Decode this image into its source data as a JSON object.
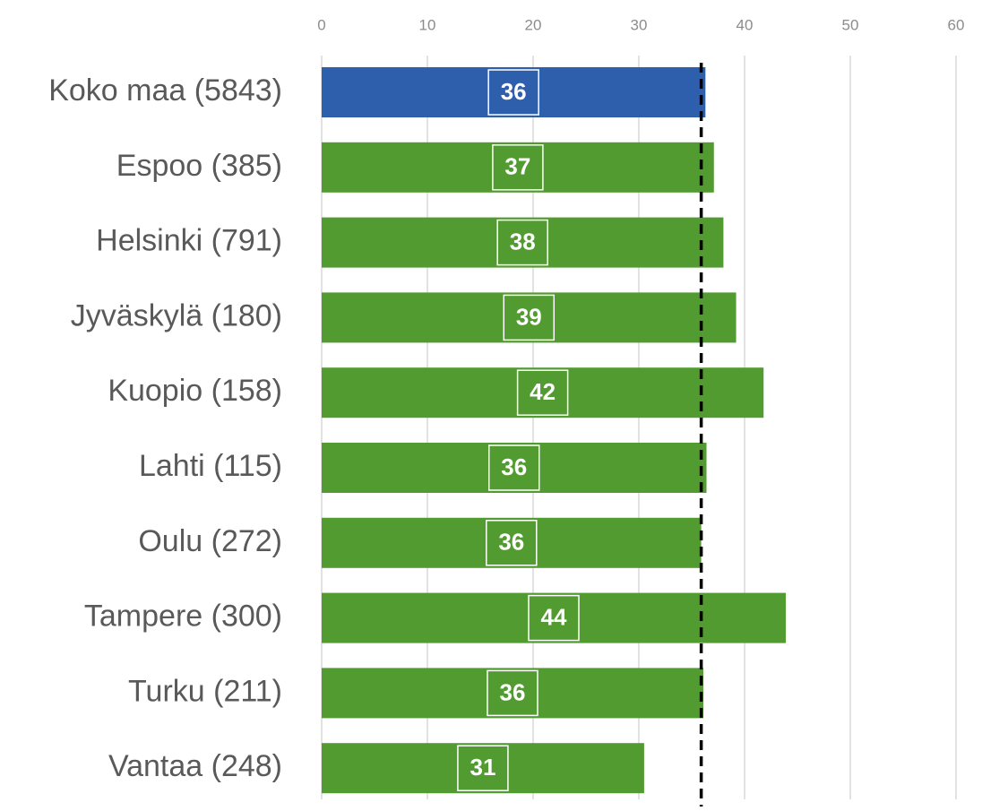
{
  "chart_data": {
    "type": "hbar",
    "categories": [
      "Koko maa (5843)",
      "Espoo (385)",
      "Helsinki (791)",
      "Jyväskylä (180)",
      "Kuopio (158)",
      "Lahti (115)",
      "Oulu (272)",
      "Tampere (300)",
      "Turku (211)",
      "Vantaa (248)"
    ],
    "values": [
      36.3,
      37.1,
      38.0,
      39.2,
      41.8,
      36.4,
      35.9,
      43.9,
      36.1,
      30.5
    ],
    "value_labels": [
      "36",
      "37",
      "38",
      "39",
      "42",
      "36",
      "36",
      "44",
      "36",
      "31"
    ],
    "colors": [
      "#2e5fac",
      "#529b30",
      "#529b30",
      "#529b30",
      "#529b30",
      "#529b30",
      "#529b30",
      "#529b30",
      "#529b30",
      "#529b30"
    ],
    "xlim": [
      0,
      60
    ],
    "xticks": [
      0,
      10,
      20,
      30,
      40,
      50,
      60
    ],
    "grid": true,
    "reference_line": 35.9
  }
}
